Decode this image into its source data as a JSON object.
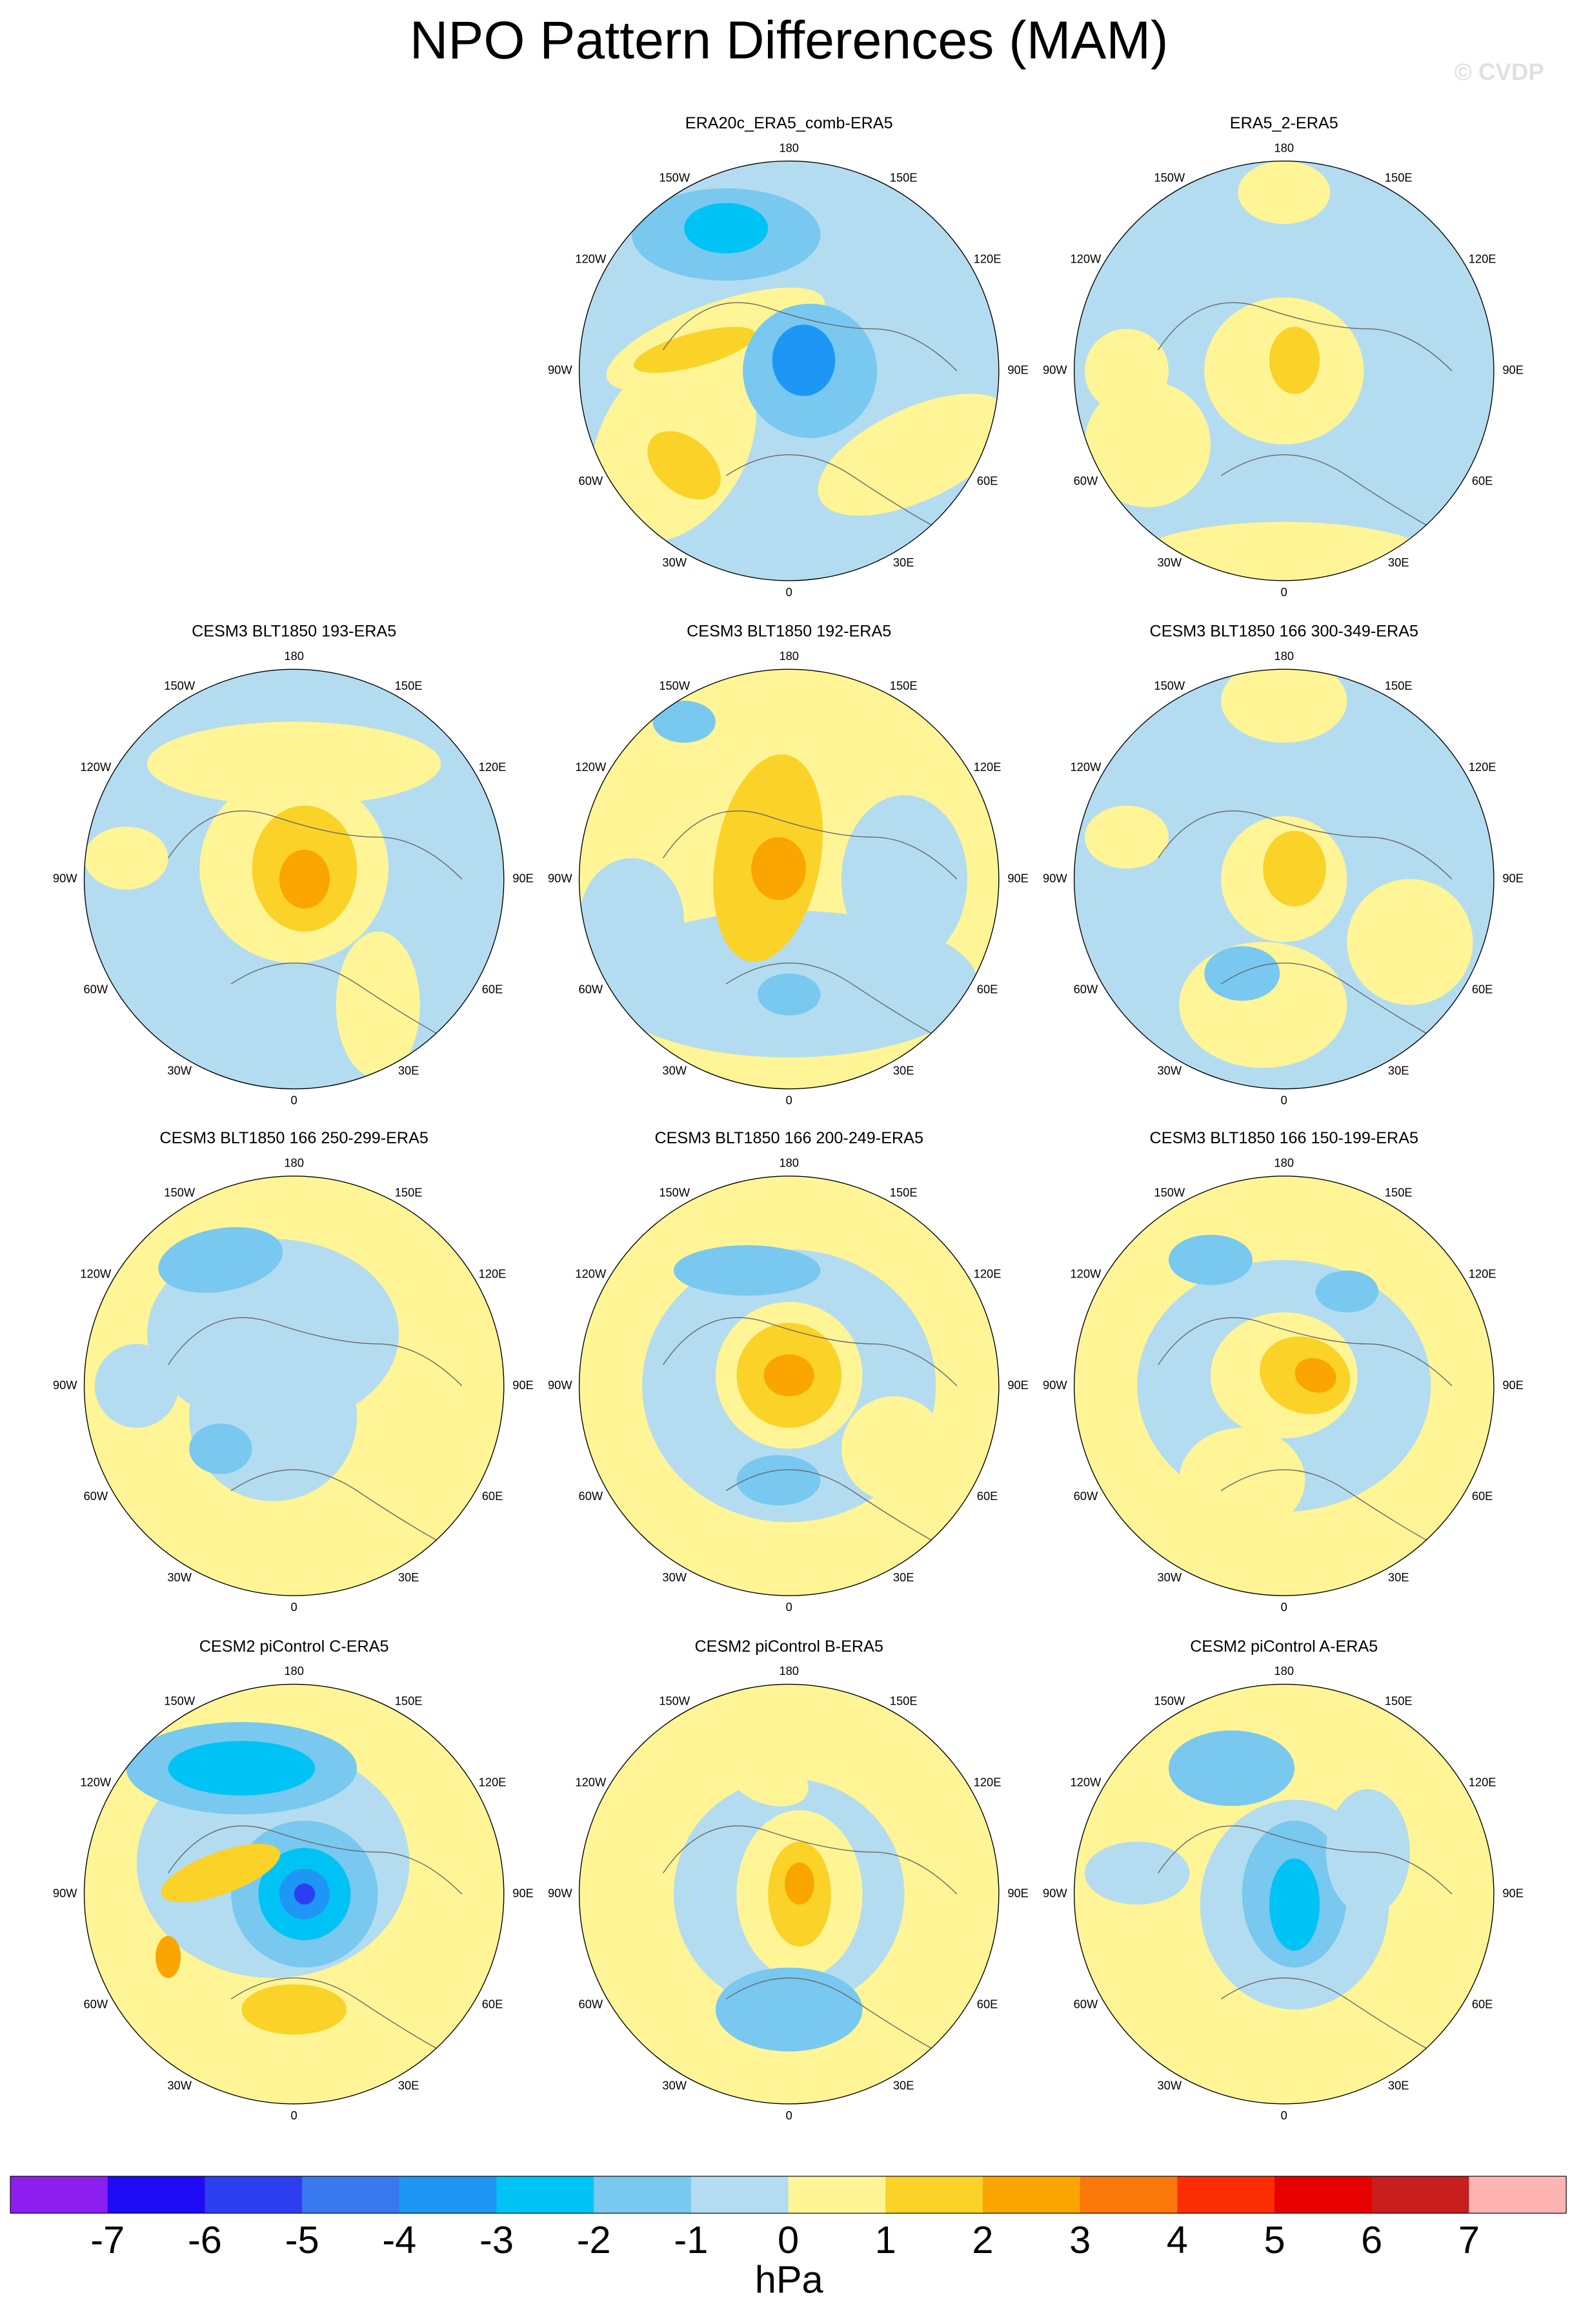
{
  "title": "NPO Pattern Differences (MAM)",
  "credit": "© CVDP",
  "panels": [
    {
      "title": "ERA20c_ERA5_comb-ERA5"
    },
    {
      "title": "ERA5_2-ERA5"
    },
    {
      "title": "CESM3 BLT1850 193-ERA5"
    },
    {
      "title": "CESM3 BLT1850 192-ERA5"
    },
    {
      "title": "CESM3 BLT1850 166 300-349-ERA5"
    },
    {
      "title": "CESM3 BLT1850 166 250-299-ERA5"
    },
    {
      "title": "CESM3 BLT1850 166 200-249-ERA5"
    },
    {
      "title": "CESM3 BLT1850 166 150-199-ERA5"
    },
    {
      "title": "CESM2 piControl C-ERA5"
    },
    {
      "title": "CESM2 piControl B-ERA5"
    },
    {
      "title": "CESM2 piControl A-ERA5"
    }
  ],
  "longitude_labels": [
    "180",
    "150E",
    "120E",
    "90E",
    "60E",
    "30E",
    "0",
    "30W",
    "60W",
    "90W",
    "120W",
    "150W"
  ],
  "colorbar": {
    "ticks": [
      -7,
      -6,
      -5,
      -4,
      -3,
      -2,
      -1,
      0,
      1,
      2,
      3,
      4,
      5,
      6,
      7
    ],
    "colors": [
      "#8c1ef0",
      "#1e0af5",
      "#2d3ef0",
      "#3a78f0",
      "#1e96f5",
      "#00c3f5",
      "#78c8f0",
      "#b4dcf0",
      "#fff596",
      "#fad228",
      "#faa500",
      "#fa780a",
      "#fa2d05",
      "#e60000",
      "#c81e1e",
      "#ffb4b4"
    ],
    "unit": "hPa"
  }
}
